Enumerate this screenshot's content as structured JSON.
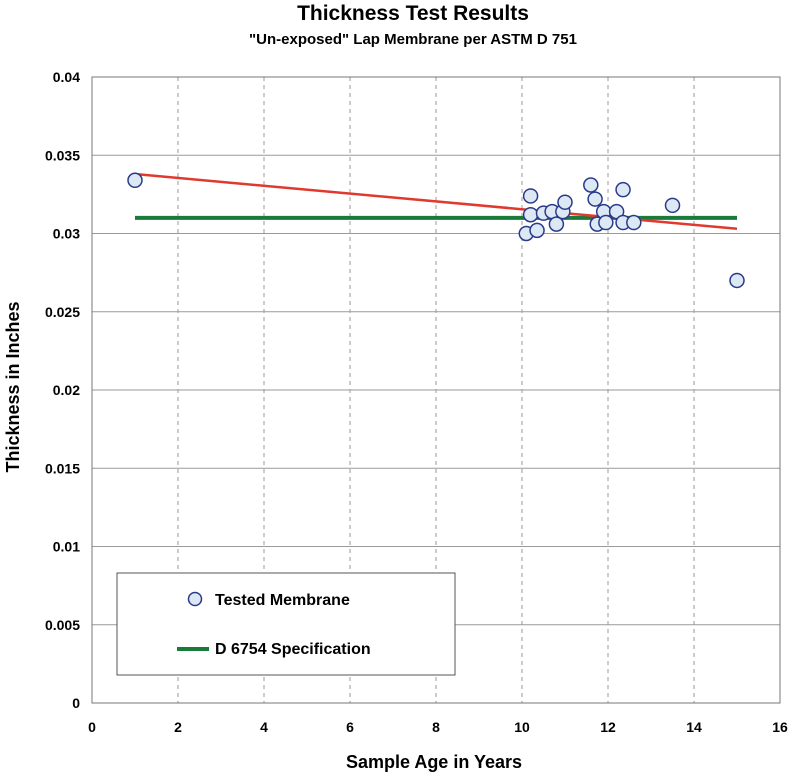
{
  "chart_data": {
    "type": "scatter",
    "title": "Thickness Test Results",
    "subtitle": "\"Un-exposed\" Lap Membrane per ASTM D 751",
    "xlabel": "Sample Age in Years",
    "ylabel": "Thickness in Inches",
    "xlim": [
      0,
      16
    ],
    "ylim": [
      0,
      0.04
    ],
    "x_ticks": [
      {
        "value": 0,
        "label": "0"
      },
      {
        "value": 2,
        "label": "2"
      },
      {
        "value": 4,
        "label": "4"
      },
      {
        "value": 6,
        "label": "6"
      },
      {
        "value": 8,
        "label": "8"
      },
      {
        "value": 10,
        "label": "10"
      },
      {
        "value": 12,
        "label": "12"
      },
      {
        "value": 14,
        "label": "14"
      },
      {
        "value": 16,
        "label": "16"
      }
    ],
    "y_ticks": [
      {
        "value": 0,
        "label": "0"
      },
      {
        "value": 0.005,
        "label": "0.005"
      },
      {
        "value": 0.01,
        "label": "0.01"
      },
      {
        "value": 0.015,
        "label": "0.015"
      },
      {
        "value": 0.02,
        "label": "0.02"
      },
      {
        "value": 0.025,
        "label": "0.025"
      },
      {
        "value": 0.03,
        "label": "0.03"
      },
      {
        "value": 0.035,
        "label": "0.035"
      },
      {
        "value": 0.04,
        "label": "0.04"
      }
    ],
    "grid": {
      "horizontal": "solid",
      "vertical": "dashed"
    },
    "series": [
      {
        "name": "Tested Membrane",
        "kind": "scatter",
        "color": "#dce9f5",
        "edge_color": "#2a3a8a",
        "points": [
          {
            "x": 1.0,
            "y": 0.0334
          },
          {
            "x": 10.1,
            "y": 0.03
          },
          {
            "x": 10.2,
            "y": 0.0324
          },
          {
            "x": 10.2,
            "y": 0.0312
          },
          {
            "x": 10.35,
            "y": 0.0302
          },
          {
            "x": 10.5,
            "y": 0.0313
          },
          {
            "x": 10.7,
            "y": 0.0314
          },
          {
            "x": 10.8,
            "y": 0.0306
          },
          {
            "x": 10.95,
            "y": 0.0314
          },
          {
            "x": 11.0,
            "y": 0.032
          },
          {
            "x": 11.6,
            "y": 0.0331
          },
          {
            "x": 11.7,
            "y": 0.0322
          },
          {
            "x": 11.75,
            "y": 0.0306
          },
          {
            "x": 11.9,
            "y": 0.0314
          },
          {
            "x": 11.95,
            "y": 0.0307
          },
          {
            "x": 12.2,
            "y": 0.0314
          },
          {
            "x": 12.35,
            "y": 0.0328
          },
          {
            "x": 12.35,
            "y": 0.0307
          },
          {
            "x": 12.6,
            "y": 0.0307
          },
          {
            "x": 13.5,
            "y": 0.0318
          },
          {
            "x": 15.0,
            "y": 0.027
          }
        ]
      },
      {
        "name": "D 6754 Specification",
        "kind": "line",
        "color": "#1a7a3a",
        "points": [
          {
            "x": 1.0,
            "y": 0.031
          },
          {
            "x": 15.0,
            "y": 0.031
          }
        ]
      },
      {
        "kind": "trendline",
        "color": "#e03a2e",
        "points": [
          {
            "x": 1.0,
            "y": 0.0338
          },
          {
            "x": 15.0,
            "y": 0.0303
          }
        ]
      }
    ],
    "legend": {
      "position": "bottom-left",
      "entries": [
        {
          "label": "Tested Membrane",
          "symbol": "circle"
        },
        {
          "label": "D 6754 Specification",
          "symbol": "line"
        }
      ]
    }
  }
}
